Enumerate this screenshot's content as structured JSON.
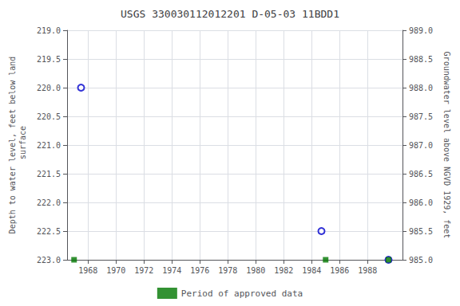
{
  "chart_data": {
    "type": "scatter",
    "title": "USGS 330030112012201 D-05-03 11BDD1",
    "ylabel": "Depth to water level, feet below land\n surface",
    "y2label": "Groundwater level above NGVD 1929, feet",
    "xlim": [
      1966.5,
      1990.5
    ],
    "xticks": [
      1968,
      1970,
      1972,
      1974,
      1976,
      1978,
      1980,
      1982,
      1984,
      1986,
      1988
    ],
    "ylim": [
      223.0,
      219.0
    ],
    "yticks": [
      {
        "value": 219,
        "label": "219.0"
      },
      219.5,
      {
        "value": 220,
        "label": "220.0"
      },
      220.5,
      {
        "value": 221,
        "label": "221.0"
      },
      221.5,
      {
        "value": 222,
        "label": "222.0"
      },
      222.5,
      {
        "value": 223,
        "label": "223.0"
      }
    ],
    "y2lim": [
      985.0,
      989.0
    ],
    "y2ticks": [
      {
        "value": 989,
        "label": "989.0"
      },
      988.5,
      {
        "value": 988,
        "label": "988.0"
      },
      987.5,
      {
        "value": 987,
        "label": "987.0"
      },
      986.5,
      {
        "value": 986,
        "label": "986.0"
      },
      985.5,
      {
        "value": 985,
        "label": "985.0"
      }
    ],
    "grid": true,
    "legend": "bottom",
    "series": [
      {
        "x": [
          1967.5,
          1984.7,
          1989.5
        ],
        "values": [
          220.0,
          222.5,
          223.0
        ],
        "color": "#0000cc",
        "marker": "hollow_circle"
      },
      {
        "name": "Period of approved data",
        "x": [
          1967.0,
          1985.0,
          1989.5
        ],
        "values": [
          223.0,
          223.0,
          223.0
        ],
        "color": "#007700",
        "marker": "square"
      }
    ]
  }
}
